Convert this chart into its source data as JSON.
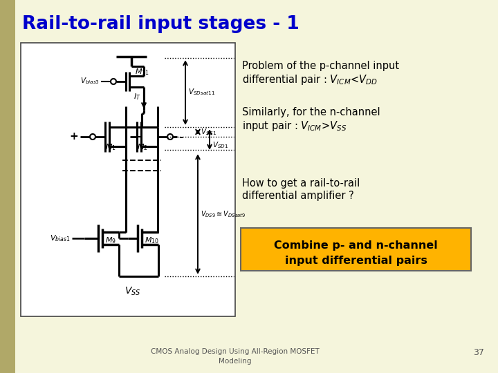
{
  "title": "Rail-to-rail input stages - 1",
  "title_color": "#0000CC",
  "slide_bg": "#F5F5DC",
  "circuit_bg": "#FFFFFF",
  "box_color": "#FFB300",
  "box_text1": "Combine p- and n-channel",
  "box_text2": "input differential pairs",
  "footer1": "CMOS Analog Design Using All-Region MOSFET",
  "footer2": "Modeling",
  "footer_page": "37",
  "left_bar_color": "#B0A868"
}
